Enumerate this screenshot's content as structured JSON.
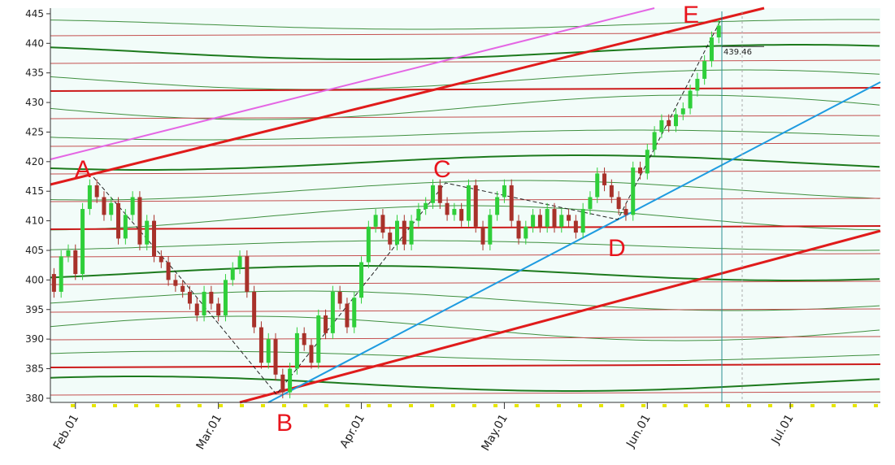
{
  "chart_data": {
    "type": "candlestick",
    "x": [
      0,
      1,
      2,
      3,
      4,
      5,
      6,
      7,
      8,
      9,
      10,
      11,
      12,
      13,
      14,
      15,
      16,
      17,
      18,
      19,
      20,
      21,
      22,
      23,
      24,
      25,
      26,
      27,
      28,
      29,
      30,
      31,
      32,
      33,
      34,
      35,
      36,
      37,
      38,
      39,
      40,
      41,
      42,
      43,
      44,
      45,
      46,
      47,
      48,
      49,
      50,
      51,
      52,
      53,
      54,
      55,
      56,
      57,
      58,
      59,
      60,
      61,
      62,
      63,
      64,
      65,
      66,
      67,
      68,
      69,
      70,
      71,
      72,
      73,
      74,
      75,
      76,
      77,
      78,
      79,
      80,
      81,
      82,
      83,
      84,
      85,
      86,
      87,
      88,
      89,
      90,
      91,
      92,
      93
    ],
    "open": [
      401,
      398,
      404,
      405,
      401,
      412,
      416,
      414,
      411,
      413,
      407,
      411,
      414,
      406,
      410,
      404,
      403,
      400,
      399,
      398,
      396,
      394,
      398,
      396,
      394,
      400,
      402,
      404,
      398,
      392,
      386,
      390,
      384,
      381,
      385,
      391,
      389,
      386,
      394,
      391,
      398,
      396,
      392,
      397,
      403,
      409,
      411,
      408,
      406,
      410,
      406,
      410,
      412,
      413,
      416,
      413,
      411,
      412,
      410,
      416,
      409,
      406,
      411,
      414,
      416,
      410,
      407,
      409,
      411,
      409,
      412,
      409,
      411,
      410,
      408,
      412,
      414,
      418,
      416,
      414,
      412,
      411,
      419,
      418,
      422,
      425,
      427,
      426,
      428,
      429,
      432,
      434,
      437,
      441
    ],
    "high": [
      402,
      405,
      406,
      406,
      413,
      417,
      417,
      415,
      414,
      414,
      412,
      415,
      415,
      411,
      411,
      405,
      404,
      401,
      400,
      399,
      397,
      399,
      399,
      397,
      401,
      403,
      405,
      405,
      399,
      393,
      391,
      391,
      385,
      386,
      392,
      392,
      390,
      395,
      395,
      399,
      399,
      397,
      398,
      404,
      410,
      412,
      412,
      409,
      411,
      411,
      411,
      413,
      414,
      417,
      417,
      414,
      413,
      413,
      417,
      417,
      410,
      412,
      415,
      417,
      417,
      411,
      410,
      412,
      412,
      413,
      413,
      412,
      412,
      411,
      413,
      415,
      419,
      419,
      417,
      415,
      413,
      420,
      420,
      423,
      426,
      428,
      428,
      429,
      430,
      433,
      435,
      438,
      442,
      444
    ],
    "low": [
      397,
      397,
      403,
      400,
      400,
      411,
      413,
      410,
      410,
      406,
      406,
      410,
      405,
      405,
      403,
      402,
      399,
      398,
      397,
      395,
      393,
      393,
      395,
      393,
      393,
      399,
      401,
      397,
      391,
      385,
      385,
      383,
      380,
      380,
      384,
      388,
      385,
      385,
      390,
      390,
      395,
      391,
      391,
      396,
      402,
      408,
      407,
      405,
      405,
      405,
      405,
      409,
      411,
      412,
      412,
      410,
      410,
      409,
      409,
      408,
      405,
      405,
      410,
      413,
      409,
      406,
      406,
      408,
      408,
      408,
      408,
      408,
      409,
      407,
      407,
      411,
      413,
      415,
      413,
      411,
      410,
      410,
      417,
      417,
      421,
      424,
      425,
      425,
      427,
      428,
      431,
      433,
      436,
      440
    ],
    "close": [
      398,
      404,
      405,
      401,
      412,
      416,
      414,
      411,
      413,
      407,
      411,
      414,
      406,
      410,
      404,
      403,
      400,
      399,
      398,
      396,
      394,
      398,
      396,
      394,
      400,
      402,
      404,
      398,
      392,
      386,
      390,
      384,
      381,
      385,
      391,
      389,
      386,
      394,
      391,
      398,
      396,
      392,
      397,
      403,
      409,
      411,
      408,
      406,
      410,
      406,
      410,
      412,
      413,
      416,
      413,
      411,
      412,
      410,
      416,
      409,
      406,
      411,
      414,
      416,
      410,
      407,
      409,
      411,
      409,
      412,
      409,
      411,
      410,
      408,
      412,
      414,
      418,
      416,
      414,
      412,
      411,
      419,
      418,
      422,
      425,
      427,
      426,
      428,
      429,
      432,
      434,
      437,
      441,
      443
    ],
    "up_color": "#2fcf3a",
    "down_color": "#a8312a",
    "xlim": [
      -0.5,
      115.6
    ],
    "xticks": [
      {
        "value": 3,
        "label": "Feb.01"
      },
      {
        "value": 23,
        "label": "Mar.01"
      },
      {
        "value": 43,
        "label": "Apr.01"
      },
      {
        "value": 63,
        "label": "May.01"
      },
      {
        "value": 83,
        "label": "Jun.01"
      },
      {
        "value": 103,
        "label": "Jul.01"
      }
    ],
    "ylim": [
      379.3,
      445.4
    ],
    "yticks": [
      380,
      385,
      390,
      395,
      400,
      405,
      410,
      415,
      420,
      425,
      430,
      435,
      440,
      445
    ],
    "price_label": {
      "value": 439.46,
      "label": "439.46"
    },
    "annotations": [
      "A",
      "B",
      "C",
      "D",
      "E"
    ]
  }
}
